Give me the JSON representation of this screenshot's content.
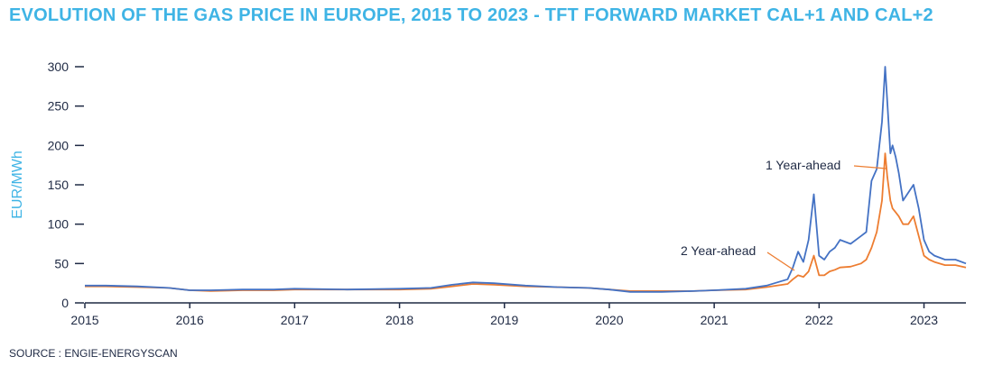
{
  "title": "EVOLUTION OF THE GAS PRICE IN EUROPE, 2015 TO 2023 - TFT FORWARD MARKET CAL+1 AND CAL+2",
  "source": "SOURCE : ENGIE-ENERGYSCAN",
  "colors": {
    "title": "#3fb4e5",
    "axis": "#1f2a44",
    "ylabel": "#3fb4e5"
  },
  "chart_data": {
    "type": "line",
    "title": "EVOLUTION OF THE GAS PRICE IN EUROPE, 2015 TO 2023 - TFT FORWARD MARKET CAL+1 AND CAL+2",
    "xlabel": "",
    "ylabel": "EUR/MWh",
    "xlim": [
      2015.0,
      2023.4
    ],
    "ylim": [
      0,
      300
    ],
    "xticks": [
      2015,
      2016,
      2017,
      2018,
      2019,
      2020,
      2021,
      2022,
      2023
    ],
    "yticks": [
      0,
      50,
      100,
      150,
      200,
      250,
      300
    ],
    "grid": false,
    "legend": "none",
    "series": [
      {
        "name": "1 Year-ahead",
        "color": "#4472c4",
        "x": [
          2015.0,
          2015.2,
          2015.5,
          2015.8,
          2016.0,
          2016.2,
          2016.5,
          2016.8,
          2017.0,
          2017.5,
          2018.0,
          2018.3,
          2018.5,
          2018.7,
          2018.9,
          2019.2,
          2019.5,
          2019.8,
          2020.0,
          2020.2,
          2020.5,
          2020.8,
          2021.0,
          2021.3,
          2021.5,
          2021.7,
          2021.75,
          2021.8,
          2021.85,
          2021.9,
          2021.95,
          2022.0,
          2022.05,
          2022.1,
          2022.15,
          2022.2,
          2022.3,
          2022.4,
          2022.45,
          2022.5,
          2022.55,
          2022.6,
          2022.63,
          2022.65,
          2022.68,
          2022.7,
          2022.73,
          2022.76,
          2022.8,
          2022.85,
          2022.9,
          2022.95,
          2023.0,
          2023.05,
          2023.1,
          2023.2,
          2023.3,
          2023.4
        ],
        "values": [
          22,
          22,
          21,
          19,
          16,
          16,
          17,
          17,
          18,
          17,
          18,
          19,
          23,
          26,
          25,
          22,
          20,
          19,
          17,
          14,
          14,
          15,
          16,
          18,
          22,
          30,
          45,
          65,
          52,
          80,
          138,
          60,
          55,
          65,
          70,
          80,
          75,
          85,
          90,
          155,
          170,
          230,
          300,
          255,
          190,
          200,
          185,
          165,
          130,
          140,
          150,
          120,
          80,
          65,
          60,
          55,
          55,
          50
        ]
      },
      {
        "name": "2 Year-ahead",
        "color": "#ed7d31",
        "x": [
          2015.0,
          2015.2,
          2015.5,
          2015.8,
          2016.0,
          2016.2,
          2016.5,
          2016.8,
          2017.0,
          2017.5,
          2018.0,
          2018.3,
          2018.5,
          2018.7,
          2018.9,
          2019.2,
          2019.5,
          2019.8,
          2020.0,
          2020.2,
          2020.5,
          2020.8,
          2021.0,
          2021.3,
          2021.5,
          2021.7,
          2021.75,
          2021.8,
          2021.85,
          2021.9,
          2021.95,
          2022.0,
          2022.05,
          2022.1,
          2022.15,
          2022.2,
          2022.3,
          2022.4,
          2022.45,
          2022.5,
          2022.55,
          2022.6,
          2022.63,
          2022.65,
          2022.68,
          2022.7,
          2022.73,
          2022.76,
          2022.8,
          2022.85,
          2022.9,
          2022.95,
          2023.0,
          2023.05,
          2023.1,
          2023.2,
          2023.3,
          2023.4
        ],
        "values": [
          21,
          21,
          20,
          19,
          16,
          15,
          16,
          16,
          17,
          17,
          17,
          18,
          21,
          24,
          23,
          21,
          20,
          19,
          17,
          15,
          15,
          15,
          16,
          17,
          20,
          24,
          30,
          35,
          33,
          40,
          60,
          35,
          35,
          40,
          42,
          45,
          46,
          50,
          55,
          70,
          90,
          130,
          190,
          160,
          130,
          120,
          115,
          110,
          100,
          100,
          110,
          85,
          60,
          55,
          52,
          48,
          48,
          45
        ]
      }
    ],
    "annotations": [
      "1 Year-ahead",
      "2 Year-ahead"
    ]
  }
}
